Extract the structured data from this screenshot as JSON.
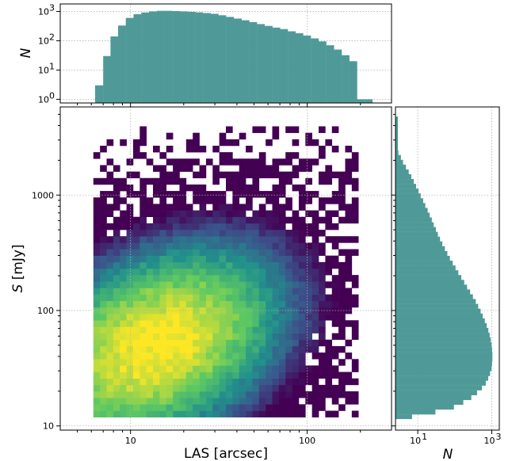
{
  "chart_data": [
    {
      "panel": "main",
      "type": "heatmap",
      "xlabel": "LAS [arcsec]",
      "ylabel": "S [mJy]",
      "xscale": "log",
      "yscale": "log",
      "xlim": [
        4.0,
        300
      ],
      "ylim": [
        9.2,
        5800
      ],
      "x_ticks": [
        10,
        100
      ],
      "y_ticks": [
        10,
        100,
        1000
      ],
      "x_tick_labels": [
        "10",
        "100"
      ],
      "y_tick_labels": [
        "10",
        "100",
        "1000"
      ],
      "grid": true,
      "colormap": "viridis",
      "cmap_colors": [
        "#440154",
        "#3b528b",
        "#21918c",
        "#5ec962",
        "#fde725"
      ],
      "peak": {
        "las": 14,
        "flux": 50
      },
      "density_spread": {
        "las_log_sigma": 0.3,
        "flux_log_sigma": 0.36,
        "correlation": 0.35
      },
      "las_range": [
        6.3,
        200
      ],
      "flux_range": [
        11.5,
        4200
      ]
    },
    {
      "panel": "top-histogram",
      "type": "bar",
      "ylabel": "N",
      "xscale": "log",
      "yscale": "log",
      "xlim": [
        4.0,
        300
      ],
      "ylim": [
        0.75,
        1800
      ],
      "y_ticks": [
        1,
        10,
        100,
        1000
      ],
      "y_tick_labels": [
        "10^0",
        "10^1",
        "10^2",
        "10^3"
      ],
      "grid": true,
      "bar_color": "#4f9a98",
      "bin_edges_las": [
        6.3,
        7.0,
        7.7,
        8.5,
        9.4,
        10.4,
        11.5,
        12.7,
        14.1,
        15.6,
        17.2,
        19.0,
        21.0,
        23.3,
        25.7,
        28.4,
        31.4,
        34.7,
        38.4,
        42.5,
        47.0,
        51.9,
        57.4,
        63.5,
        70.2,
        77.6,
        85.8,
        94.8,
        104.8,
        115.9,
        128.1,
        141.6,
        156.6,
        173.1,
        191.4,
        211.6,
        234.0
      ],
      "counts": [
        3,
        30,
        140,
        330,
        600,
        800,
        920,
        1000,
        1050,
        1050,
        1030,
        1000,
        970,
        930,
        880,
        830,
        740,
        650,
        570,
        500,
        430,
        370,
        320,
        280,
        250,
        210,
        180,
        150,
        120,
        95,
        70,
        50,
        32,
        20,
        1,
        1
      ]
    },
    {
      "panel": "right-histogram",
      "type": "bar",
      "xlabel": "N",
      "xscale": "log",
      "yscale": "log",
      "xlim": [
        2.5,
        1600
      ],
      "ylim": [
        9.2,
        5800
      ],
      "x_ticks": [
        10,
        1000
      ],
      "x_tick_labels": [
        "10^1",
        "10^3"
      ],
      "grid": true,
      "bar_color": "#4f9a98",
      "bin_edges_flux": [
        11.5,
        12.6,
        13.9,
        15.3,
        16.8,
        18.5,
        20.4,
        22.4,
        24.7,
        27.1,
        29.9,
        32.9,
        36.2,
        39.8,
        43.8,
        48.2,
        53.0,
        58.4,
        64.2,
        70.7,
        77.8,
        85.6,
        94.2,
        103.7,
        114.1,
        125.6,
        138.2,
        152.1,
        167.4,
        184.2,
        202.7,
        223.1,
        245.5,
        270.2,
        297.4,
        327.3,
        360.2,
        396.4,
        436.2,
        480.1,
        528.3,
        581.4,
        639.8,
        704.1,
        774.9,
        852.8,
        938.5,
        1032.8,
        1136.6,
        1250.8,
        1376.5,
        1514.9,
        1667.1,
        1834.7,
        2019.1,
        2222.0,
        2445.3,
        2691.1,
        2961.6,
        3259.2,
        3586.8,
        3947.3,
        4344.0,
        4780.6
      ],
      "counts": [
        7,
        30,
        95,
        170,
        280,
        400,
        540,
        690,
        800,
        900,
        980,
        1020,
        1040,
        1040,
        1020,
        990,
        940,
        880,
        810,
        730,
        650,
        570,
        500,
        430,
        370,
        310,
        260,
        215,
        180,
        150,
        125,
        105,
        88,
        74,
        63,
        54,
        46,
        40,
        35,
        31,
        27,
        24,
        21,
        18.5,
        16,
        14,
        12,
        10.5,
        9,
        7.8,
        6.7,
        5.7,
        4.8,
        4,
        3.5,
        3,
        2.9,
        2.9,
        2.9,
        2.9,
        2.9,
        2.9,
        2.9
      ]
    }
  ]
}
